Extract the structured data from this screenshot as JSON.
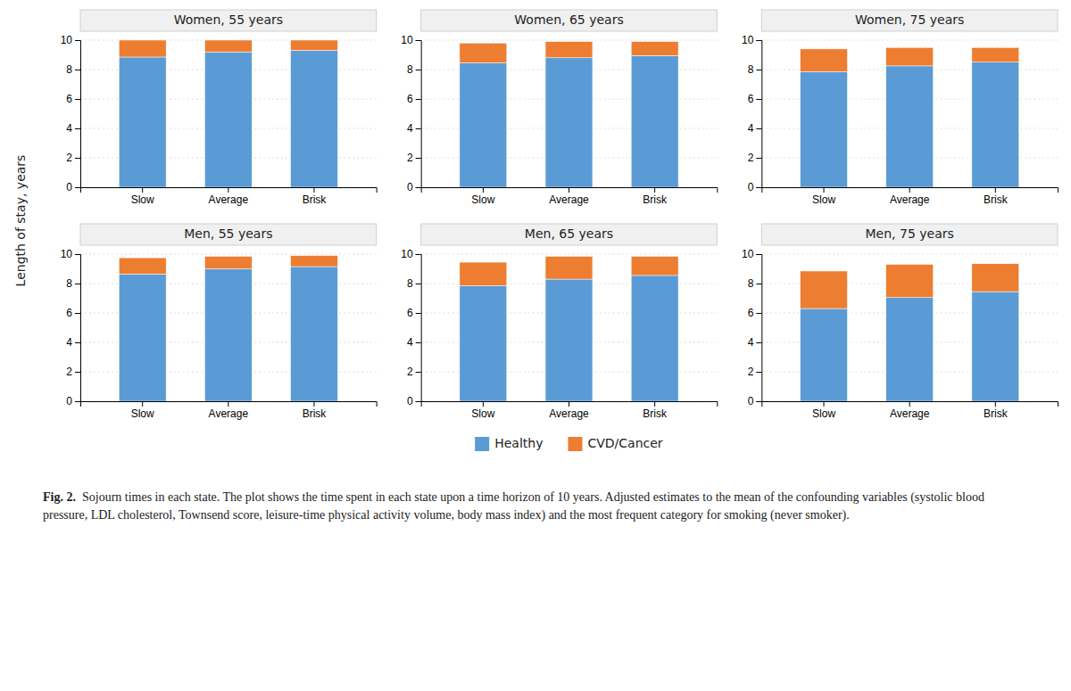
{
  "chart_data": [
    {
      "type": "bar",
      "stacked": true,
      "grid": true,
      "title": "Women, 55 years",
      "ylabel": "Length of stay, years",
      "legend": "bottom",
      "annotations": [
        "Fig. 2.",
        "Sojourn times in each state. The plot shows the time spent in each state upon a time horizon of 10 years. Adjusted estimates to the mean of the confounding variables (systolic blood pressure, LDL cholesterol, Townsend score, leisure-time physical activity volume, body mass index) and the most frequent category for smoking (never smoker)."
      ],
      "categories": [
        "Slow",
        "Average",
        "Brisk"
      ],
      "series": [
        {
          "name": "Healthy",
          "color": "#5B9BD5",
          "values": [
            8.85,
            9.2,
            9.3
          ]
        },
        {
          "name": "CVD/Cancer",
          "color": "#ED7D31",
          "values": [
            1.15,
            0.8,
            0.7
          ]
        }
      ],
      "ylim": [
        0,
        10
      ],
      "yticks": [
        0,
        2,
        4,
        6,
        8,
        10
      ]
    },
    {
      "type": "bar",
      "stacked": true,
      "grid": true,
      "title": "Women, 65 years",
      "categories": [
        "Slow",
        "Average",
        "Brisk"
      ],
      "series": [
        {
          "name": "Healthy",
          "color": "#5B9BD5",
          "values": [
            8.45,
            8.8,
            8.95
          ]
        },
        {
          "name": "CVD/Cancer",
          "color": "#ED7D31",
          "values": [
            1.35,
            1.1,
            0.95
          ]
        }
      ],
      "ylim": [
        0,
        10
      ],
      "yticks": [
        0,
        2,
        4,
        6,
        8,
        10
      ]
    },
    {
      "type": "bar",
      "stacked": true,
      "grid": true,
      "title": "Women, 75 years",
      "categories": [
        "Slow",
        "Average",
        "Brisk"
      ],
      "series": [
        {
          "name": "Healthy",
          "color": "#5B9BD5",
          "values": [
            7.85,
            8.25,
            8.5
          ]
        },
        {
          "name": "CVD/Cancer",
          "color": "#ED7D31",
          "values": [
            1.55,
            1.25,
            1.0
          ]
        }
      ],
      "ylim": [
        0,
        10
      ],
      "yticks": [
        0,
        2,
        4,
        6,
        8,
        10
      ]
    },
    {
      "type": "bar",
      "stacked": true,
      "grid": true,
      "title": "Men, 55 years",
      "categories": [
        "Slow",
        "Average",
        "Brisk"
      ],
      "series": [
        {
          "name": "Healthy",
          "color": "#5B9BD5",
          "values": [
            8.65,
            9.0,
            9.15
          ]
        },
        {
          "name": "CVD/Cancer",
          "color": "#ED7D31",
          "values": [
            1.1,
            0.85,
            0.75
          ]
        }
      ],
      "ylim": [
        0,
        10
      ],
      "yticks": [
        0,
        2,
        4,
        6,
        8,
        10
      ]
    },
    {
      "type": "bar",
      "stacked": true,
      "grid": true,
      "title": "Men, 65 years",
      "categories": [
        "Slow",
        "Average",
        "Brisk"
      ],
      "series": [
        {
          "name": "Healthy",
          "color": "#5B9BD5",
          "values": [
            7.85,
            8.3,
            8.55
          ]
        },
        {
          "name": "CVD/Cancer",
          "color": "#ED7D31",
          "values": [
            1.6,
            1.55,
            1.3
          ]
        }
      ],
      "ylim": [
        0,
        10
      ],
      "yticks": [
        0,
        2,
        4,
        6,
        8,
        10
      ]
    },
    {
      "type": "bar",
      "stacked": true,
      "grid": true,
      "title": "Men, 75 years",
      "categories": [
        "Slow",
        "Average",
        "Brisk"
      ],
      "series": [
        {
          "name": "Healthy",
          "color": "#5B9BD5",
          "values": [
            6.3,
            7.05,
            7.45
          ]
        },
        {
          "name": "CVD/Cancer",
          "color": "#ED7D31",
          "values": [
            2.55,
            2.25,
            1.9
          ]
        }
      ],
      "ylim": [
        0,
        10
      ],
      "yticks": [
        0,
        2,
        4,
        6,
        8,
        10
      ]
    }
  ]
}
